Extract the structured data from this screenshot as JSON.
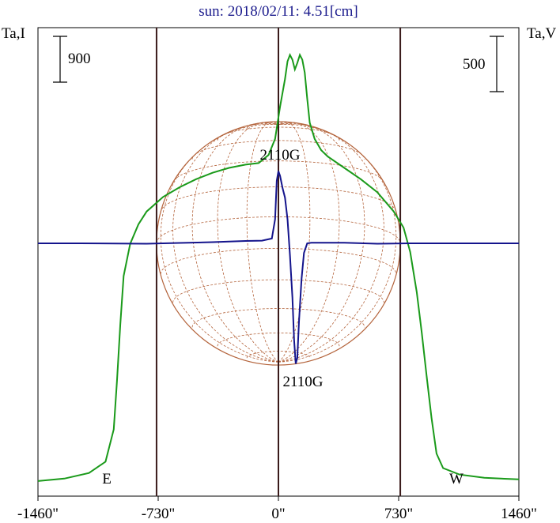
{
  "chart_data": {
    "type": "line",
    "title": "sun: 2018/02/11: 4.51[cm]",
    "ylabel_left": "Ta,I",
    "ylabel_right": "Ta,V",
    "xlim": [
      -1460,
      1460
    ],
    "x_tick_labels": [
      "-1460\"",
      "-730\"",
      "0\"",
      "730\"",
      "1460\""
    ],
    "x_ticks": [
      -1460,
      -730,
      0,
      730,
      1460
    ],
    "scale_bar_left": "900",
    "scale_bar_right": "500",
    "limb_markers": {
      "east": "E",
      "west": "W"
    },
    "limb_lines_x": [
      -740,
      0,
      740
    ],
    "annotations": [
      {
        "text": "2110G",
        "series": "I"
      },
      {
        "text": "2110G",
        "series": "V"
      }
    ],
    "colors": {
      "I": "#1a9a1a",
      "V": "#14148c",
      "disk": "#b4643c",
      "limb_lines": "#3a1a1a",
      "title": "#1a1a8c"
    },
    "series": [
      {
        "name": "I",
        "unit_note": "Ta in scale units of the left bar (900)",
        "points": [
          [
            -1460,
            30
          ],
          [
            -1300,
            45
          ],
          [
            -1150,
            80
          ],
          [
            -1050,
            150
          ],
          [
            -1000,
            350
          ],
          [
            -980,
            650
          ],
          [
            -960,
            1000
          ],
          [
            -940,
            1300
          ],
          [
            -900,
            1500
          ],
          [
            -850,
            1620
          ],
          [
            -800,
            1700
          ],
          [
            -700,
            1790
          ],
          [
            -600,
            1850
          ],
          [
            -500,
            1900
          ],
          [
            -400,
            1940
          ],
          [
            -300,
            1970
          ],
          [
            -200,
            1990
          ],
          [
            -120,
            2000
          ],
          [
            -60,
            2050
          ],
          [
            -20,
            2150
          ],
          [
            10,
            2350
          ],
          [
            40,
            2520
          ],
          [
            55,
            2630
          ],
          [
            70,
            2670
          ],
          [
            85,
            2640
          ],
          [
            100,
            2580
          ],
          [
            115,
            2620
          ],
          [
            130,
            2670
          ],
          [
            145,
            2640
          ],
          [
            160,
            2560
          ],
          [
            175,
            2400
          ],
          [
            190,
            2250
          ],
          [
            220,
            2150
          ],
          [
            260,
            2080
          ],
          [
            300,
            2040
          ],
          [
            400,
            1970
          ],
          [
            500,
            1900
          ],
          [
            600,
            1820
          ],
          [
            700,
            1700
          ],
          [
            760,
            1600
          ],
          [
            800,
            1450
          ],
          [
            840,
            1200
          ],
          [
            870,
            950
          ],
          [
            900,
            680
          ],
          [
            930,
            420
          ],
          [
            960,
            200
          ],
          [
            1000,
            110
          ],
          [
            1100,
            70
          ],
          [
            1250,
            50
          ],
          [
            1460,
            40
          ]
        ]
      },
      {
        "name": "V",
        "unit_note": "Ta in scale units of the right bar (500)",
        "points": [
          [
            -1460,
            0
          ],
          [
            -1200,
            0
          ],
          [
            -800,
            -3
          ],
          [
            -600,
            3
          ],
          [
            -400,
            10
          ],
          [
            -200,
            20
          ],
          [
            -100,
            22
          ],
          [
            -40,
            40
          ],
          [
            -20,
            200
          ],
          [
            -10,
            520
          ],
          [
            0,
            600
          ],
          [
            10,
            560
          ],
          [
            25,
            460
          ],
          [
            40,
            380
          ],
          [
            55,
            200
          ],
          [
            70,
            -100
          ],
          [
            85,
            -450
          ],
          [
            95,
            -800
          ],
          [
            105,
            -1000
          ],
          [
            115,
            -950
          ],
          [
            125,
            -650
          ],
          [
            140,
            -300
          ],
          [
            155,
            -80
          ],
          [
            175,
            0
          ],
          [
            200,
            5
          ],
          [
            400,
            5
          ],
          [
            600,
            -3
          ],
          [
            800,
            0
          ],
          [
            1200,
            0
          ],
          [
            1460,
            0
          ]
        ]
      }
    ]
  }
}
